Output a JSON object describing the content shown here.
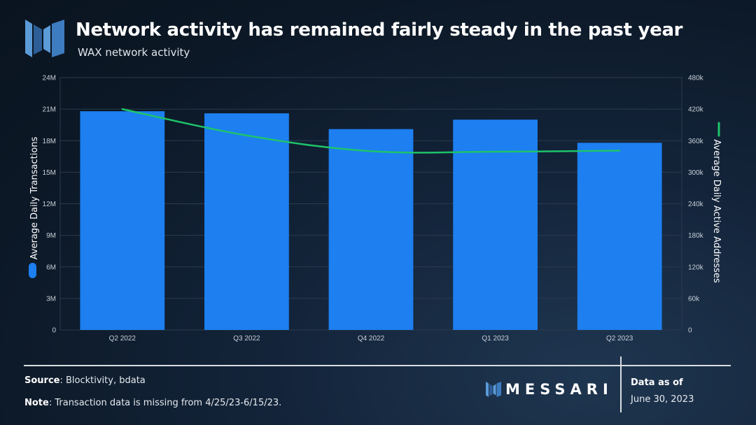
{
  "header": {
    "title": "Network activity has remained fairly steady in the past year",
    "subtitle": "WAX network activity"
  },
  "chart_data": {
    "type": "bar",
    "categories": [
      "Q2 2022",
      "Q3 2022",
      "Q4 2022",
      "Q1 2023",
      "Q2 2023"
    ],
    "series": [
      {
        "name": "Average Daily Transactions",
        "type": "bar",
        "axis": "left",
        "color": "#1d7ff0",
        "values": [
          20800000,
          20600000,
          19100000,
          20000000,
          17800000
        ]
      },
      {
        "name": "Average Daily Active Addresses",
        "type": "line",
        "axis": "right",
        "color": "#1ec46a",
        "values": [
          420000,
          370000,
          340000,
          339000,
          341000
        ]
      }
    ],
    "ylabel": "Average Daily Transactions",
    "y2label": "Average Daily Active Addresses",
    "ylim": [
      0,
      24000000
    ],
    "y2lim": [
      0,
      480000
    ],
    "yticks": [
      "0",
      "3M",
      "6M",
      "9M",
      "12M",
      "15M",
      "18M",
      "21M",
      "24M"
    ],
    "y2ticks": [
      "0",
      "60k",
      "120k",
      "180k",
      "240k",
      "300k",
      "360k",
      "420k",
      "480k"
    ],
    "grid": true
  },
  "footer": {
    "source_label": "Source",
    "source_text": ": Blocktivity, bdata",
    "note_label": "Note",
    "note_text": ": Transaction data is missing from 4/25/23-6/15/23.",
    "brand": "MESSARI",
    "as_of_label": "Data as of",
    "as_of_date": "June 30, 2023"
  },
  "colors": {
    "logo_light": "#5b9bd8",
    "logo_dark": "#2d5e96",
    "grid": "#2b3a4c",
    "tick_text": "#c8cfd8"
  }
}
